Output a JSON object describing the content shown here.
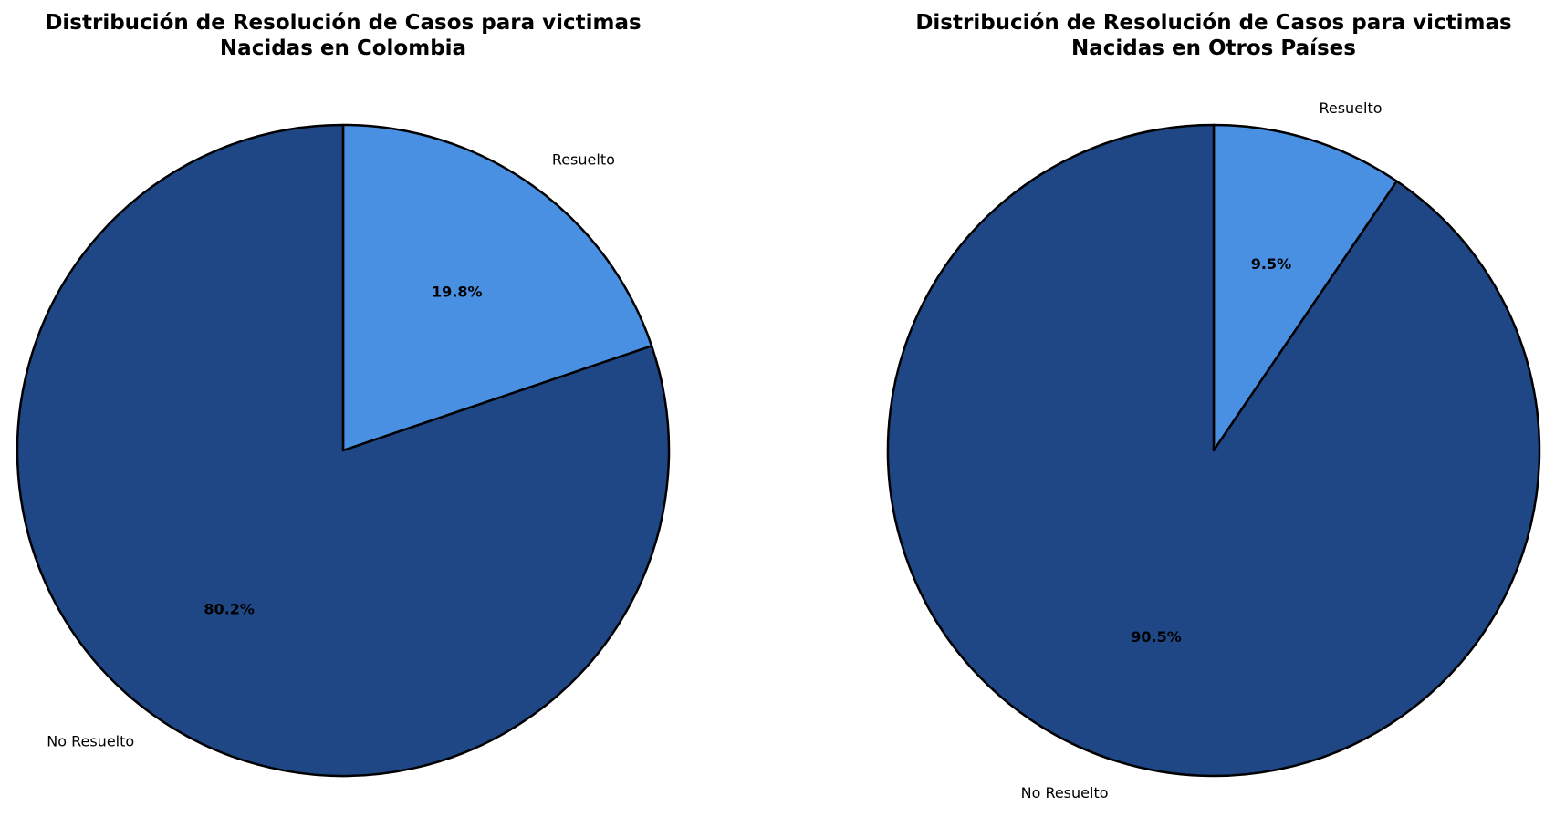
{
  "chart_data": [
    {
      "type": "pie",
      "title_lines": [
        "Distribución de Resolución de Casos para victimas",
        "Nacidas en Colombia"
      ],
      "slices": [
        {
          "label": "Resuelto",
          "value": 19.8,
          "pct_label": "19.8%",
          "color": "#4a90e2"
        },
        {
          "label": "No Resuelto",
          "value": 80.2,
          "pct_label": "80.2%",
          "color": "#1f4685"
        }
      ],
      "start_angle": "top",
      "direction": "clockwise"
    },
    {
      "type": "pie",
      "title_lines": [
        "Distribución de Resolución de Casos para victimas",
        "Nacidas en Otros Países"
      ],
      "slices": [
        {
          "label": "Resuelto",
          "value": 9.5,
          "pct_label": "9.5%",
          "color": "#4a90e2"
        },
        {
          "label": "No Resuelto",
          "value": 90.5,
          "pct_label": "90.5%",
          "color": "#1f4685"
        }
      ],
      "start_angle": "top",
      "direction": "clockwise"
    }
  ]
}
